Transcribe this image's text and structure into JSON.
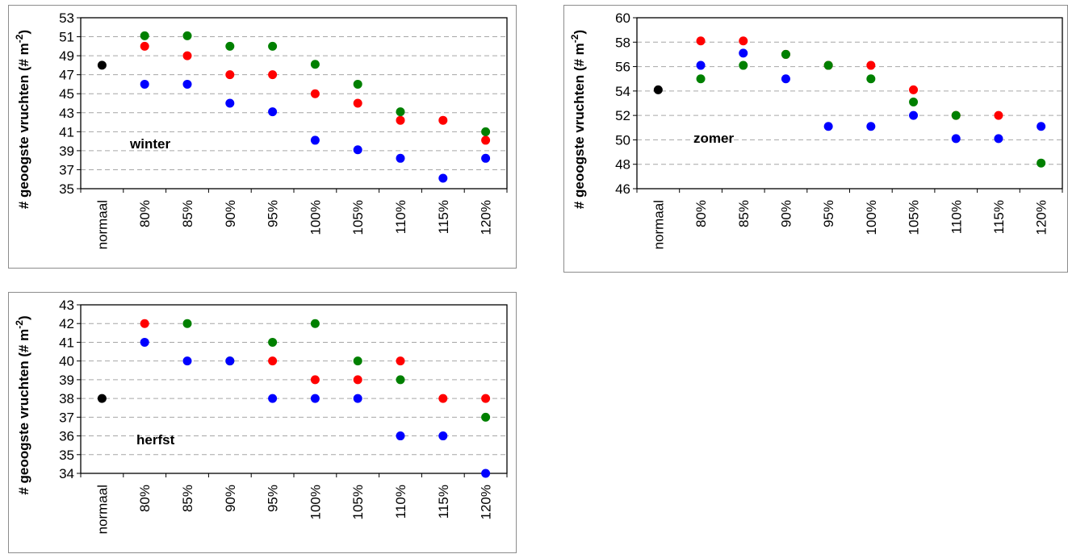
{
  "colors": {
    "black": "#000000",
    "red": "#ff0000",
    "green": "#008000",
    "blue": "#0000ff",
    "grid": "#a6a6a6",
    "frame": "#000000"
  },
  "chart_data": [
    {
      "id": "winter",
      "type": "scatter",
      "season_label": "winter",
      "ylabel": "# geoogste vruchten (# m",
      "ylabel_sup": "-2",
      "ylabel_close": ")",
      "categories": [
        "normaal",
        "80%",
        "85%",
        "90%",
        "95%",
        "100%",
        "105%",
        "110%",
        "115%",
        "120%"
      ],
      "yticks": [
        "35",
        "37",
        "39",
        "41",
        "43",
        "45",
        "47",
        "49",
        "51",
        "53"
      ],
      "ylim": [
        35,
        53
      ],
      "grid": true,
      "series": [
        {
          "color": "black",
          "values": [
            48,
            null,
            null,
            null,
            null,
            null,
            null,
            null,
            null,
            null
          ]
        },
        {
          "color": "red",
          "values": [
            null,
            50,
            49,
            47,
            47,
            45,
            44,
            42.2,
            42.2,
            40.1
          ]
        },
        {
          "color": "green",
          "values": [
            null,
            51.1,
            51.1,
            50,
            50,
            48.1,
            46,
            43.1,
            null,
            41
          ]
        },
        {
          "color": "blue",
          "values": [
            null,
            46,
            46,
            44,
            43.1,
            40.1,
            39.1,
            38.2,
            36.1,
            38.2
          ]
        }
      ]
    },
    {
      "id": "zomer",
      "type": "scatter",
      "season_label": "zomer",
      "ylabel": "# geoogste vruchten (# m",
      "ylabel_sup": "-2",
      "ylabel_close": ")",
      "categories": [
        "normaal",
        "80%",
        "85%",
        "90%",
        "95%",
        "100%",
        "105%",
        "110%",
        "115%",
        "120%"
      ],
      "yticks": [
        "46",
        "48",
        "50",
        "52",
        "54",
        "56",
        "58",
        "60"
      ],
      "ylim": [
        46,
        60
      ],
      "grid": true,
      "series": [
        {
          "color": "black",
          "values": [
            54.1,
            null,
            null,
            null,
            null,
            null,
            null,
            null,
            null,
            null
          ]
        },
        {
          "color": "red",
          "values": [
            null,
            58.1,
            58.1,
            57,
            56.1,
            56.1,
            54.1,
            52,
            52,
            null
          ]
        },
        {
          "color": "green",
          "values": [
            null,
            55,
            56.1,
            57,
            56.1,
            55,
            53.1,
            52,
            null,
            48.1
          ]
        },
        {
          "color": "blue",
          "values": [
            null,
            56.1,
            57.1,
            55,
            51.1,
            51.1,
            52,
            50.1,
            50.1,
            51.1
          ]
        }
      ]
    },
    {
      "id": "herfst",
      "type": "scatter",
      "season_label": "herfst",
      "ylabel": "# geoogste vruchten (# m",
      "ylabel_sup": "-2",
      "ylabel_close": ")",
      "categories": [
        "normaal",
        "80%",
        "85%",
        "90%",
        "95%",
        "100%",
        "105%",
        "110%",
        "115%",
        "120%"
      ],
      "yticks": [
        "34",
        "35",
        "36",
        "37",
        "38",
        "39",
        "40",
        "41",
        "42",
        "43"
      ],
      "ylim": [
        34,
        43
      ],
      "grid": true,
      "series": [
        {
          "color": "black",
          "values": [
            38,
            null,
            null,
            null,
            null,
            null,
            null,
            null,
            null,
            null
          ]
        },
        {
          "color": "red",
          "values": [
            null,
            42,
            null,
            null,
            40,
            39,
            39,
            40,
            38,
            38
          ]
        },
        {
          "color": "green",
          "values": [
            null,
            null,
            42,
            40,
            41,
            42,
            40,
            39,
            null,
            37
          ]
        },
        {
          "color": "blue",
          "values": [
            null,
            41,
            40,
            40,
            38,
            38,
            38,
            36,
            36,
            34
          ]
        }
      ]
    }
  ]
}
